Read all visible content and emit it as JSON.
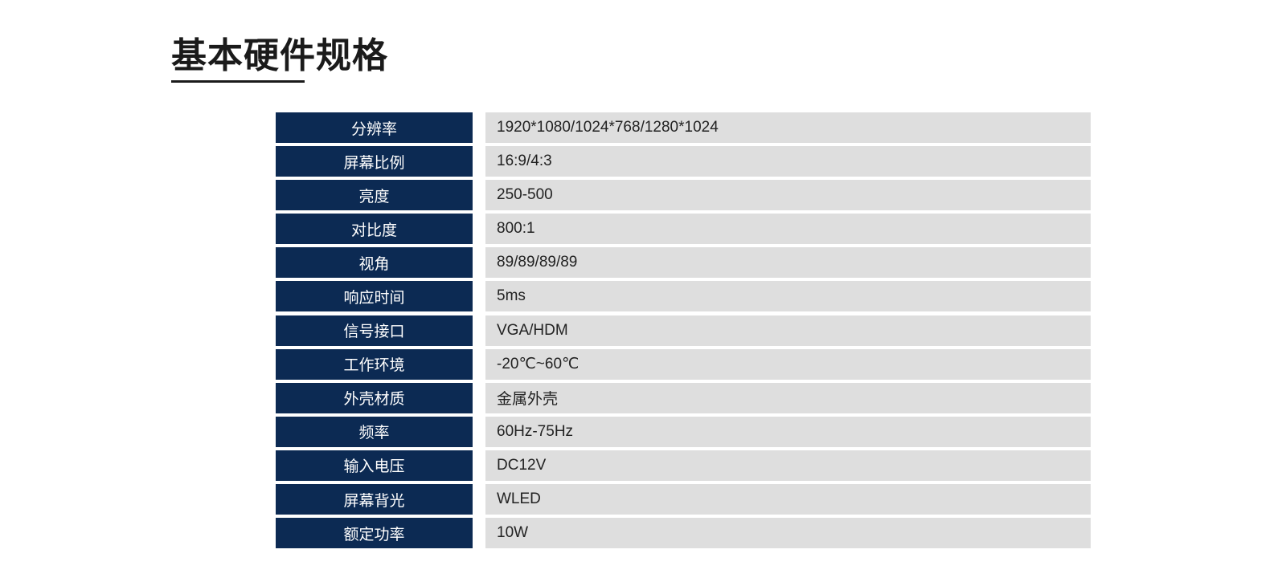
{
  "title": "基本硬件规格",
  "specs": [
    {
      "label": "分辨率",
      "value": "1920*1080/1024*768/1280*1024"
    },
    {
      "label": "屏幕比例",
      "value": "16:9/4:3"
    },
    {
      "label": "亮度",
      "value": "250-500"
    },
    {
      "label": "对比度",
      "value": "800:1"
    },
    {
      "label": "视角",
      "value": "89/89/89/89"
    },
    {
      "label": "响应时间",
      "value": "5ms"
    },
    {
      "label": "信号接口",
      "value": "VGA/HDM"
    },
    {
      "label": "工作环境",
      "value": "-20℃~60℃"
    },
    {
      "label": "外壳材质",
      "value": "金属外壳"
    },
    {
      "label": "频率",
      "value": "60Hz-75Hz"
    },
    {
      "label": "输入电压",
      "value": "DC12V"
    },
    {
      "label": "屏幕背光",
      "value": "WLED"
    },
    {
      "label": "额定功率",
      "value": "10W"
    }
  ],
  "colors": {
    "label_bg": "#0c2a53",
    "value_bg": "#dedede"
  }
}
